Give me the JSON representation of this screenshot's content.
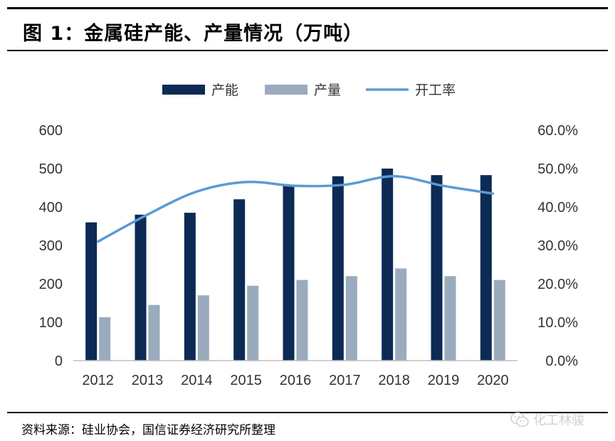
{
  "figure_title": "图 1：金属硅产能、产量情况（万吨）",
  "source_note": "资料来源：硅业协会，国信证券经济研究所整理",
  "watermark": {
    "icon": "wechat-icon",
    "text": "化工林骏"
  },
  "colors": {
    "capacity": "#0d2a55",
    "output": "#9aabbd",
    "utilization": "#5b9bd5",
    "axis": "#bfbfbf",
    "tick_text": "#333333"
  },
  "chart_data": {
    "type": "bar",
    "title": "",
    "categories": [
      "2012",
      "2013",
      "2014",
      "2015",
      "2016",
      "2017",
      "2018",
      "2019",
      "2020"
    ],
    "series": [
      {
        "name": "产能",
        "type": "bar",
        "axis": "left",
        "values": [
          360,
          380,
          385,
          420,
          455,
          480,
          500,
          483,
          483
        ]
      },
      {
        "name": "产量",
        "type": "bar",
        "axis": "left",
        "values": [
          113,
          145,
          170,
          195,
          210,
          220,
          240,
          220,
          210
        ]
      },
      {
        "name": "开工率",
        "type": "line",
        "axis": "right",
        "values": [
          0.31,
          0.38,
          0.44,
          0.465,
          0.455,
          0.458,
          0.48,
          0.455,
          0.435
        ]
      }
    ],
    "ylim_left": [
      0,
      600
    ],
    "yticks_left": [
      "0",
      "100",
      "200",
      "300",
      "400",
      "500",
      "600"
    ],
    "ylim_right": [
      0,
      0.6
    ],
    "yticks_right": [
      "0.0%",
      "10.0%",
      "20.0%",
      "30.0%",
      "40.0%",
      "50.0%",
      "60.0%"
    ],
    "grid": false,
    "legend_position": "top-center"
  }
}
